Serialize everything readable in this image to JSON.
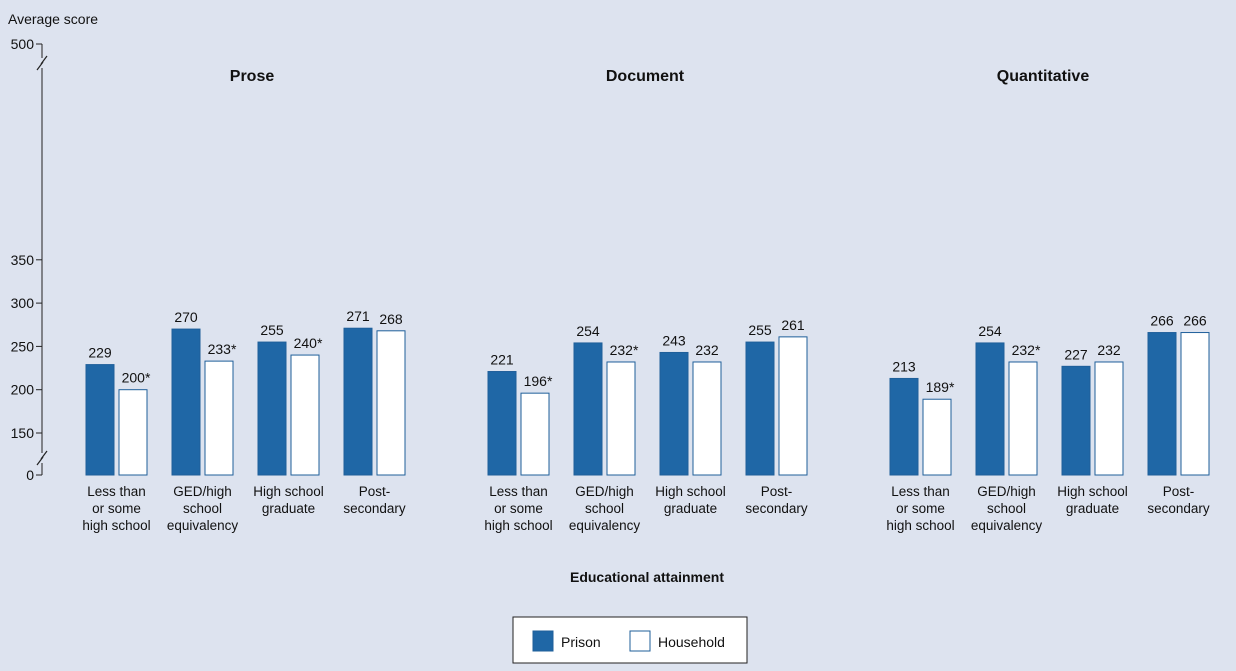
{
  "chart_data": {
    "type": "bar",
    "ylabel": "Average score",
    "xlabel": "Educational attainment",
    "y_ticks": [
      "0",
      "150",
      "200",
      "250",
      "300",
      "350",
      "500"
    ],
    "y_axis_break": true,
    "legend_position": "bottom-center",
    "colors": {
      "Prison": "#1f67a6",
      "Household": "#ffffff",
      "bar_outline": "#1f5f9a"
    },
    "categories": [
      [
        "Less than",
        "or some",
        "high school"
      ],
      [
        "GED/high",
        "school",
        "equivalency"
      ],
      [
        "High school",
        "graduate"
      ],
      [
        "Post-",
        "secondary"
      ]
    ],
    "panels": [
      {
        "title": "Prose",
        "series": [
          {
            "name": "Prison",
            "values": [
              229,
              270,
              255,
              271
            ],
            "labels": [
              "229",
              "270",
              "255",
              "271"
            ]
          },
          {
            "name": "Household",
            "values": [
              200,
              233,
              240,
              268
            ],
            "labels": [
              "200*",
              "233*",
              "240*",
              "268"
            ]
          }
        ]
      },
      {
        "title": "Document",
        "series": [
          {
            "name": "Prison",
            "values": [
              221,
              254,
              243,
              255
            ],
            "labels": [
              "221",
              "254",
              "243",
              "255"
            ]
          },
          {
            "name": "Household",
            "values": [
              196,
              232,
              232,
              261
            ],
            "labels": [
              "196*",
              "232*",
              "232",
              "261"
            ]
          }
        ]
      },
      {
        "title": "Quantitative",
        "series": [
          {
            "name": "Prison",
            "values": [
              213,
              254,
              227,
              266
            ],
            "labels": [
              "213",
              "254",
              "227",
              "266"
            ]
          },
          {
            "name": "Household",
            "values": [
              189,
              232,
              232,
              266
            ],
            "labels": [
              "189*",
              "232*",
              "232",
              "266"
            ]
          }
        ]
      }
    ]
  }
}
